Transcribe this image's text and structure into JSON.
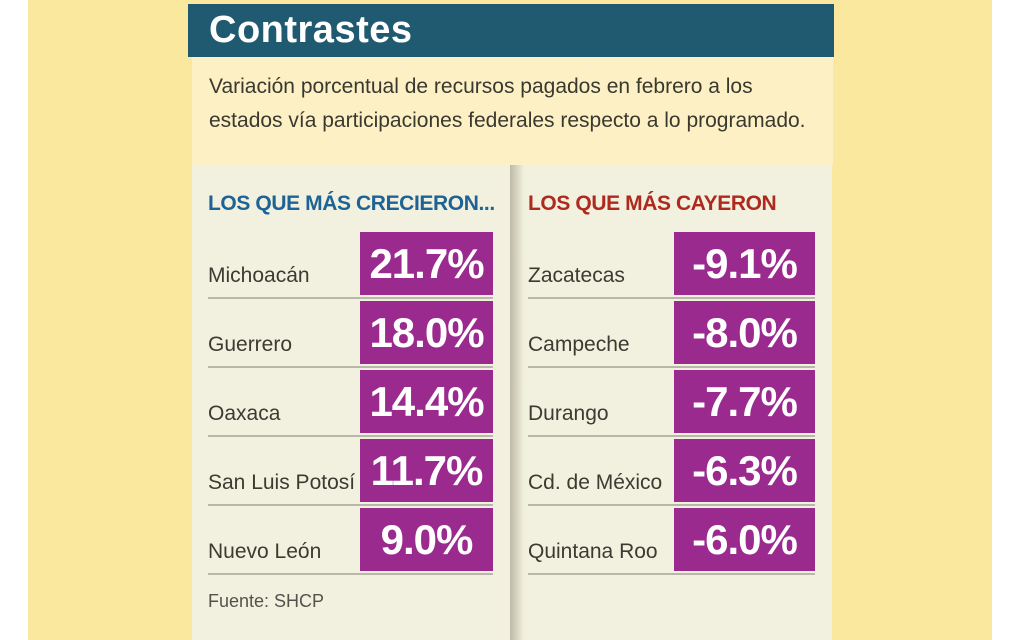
{
  "title": "Contrastes",
  "subtitle": "Variación porcentual de recursos pagados en febrero a los estados vía participaciones federales respecto a lo programado.",
  "source": "Fuente: SHCP",
  "colors": {
    "title_bar_bg": "#205a70",
    "title_text": "#ffffff",
    "page_bg": "#f9e89e",
    "intro_bg": "#fdf0c5",
    "panel_bg": "#f2f0de",
    "value_badge_bg": "#9b2a8f",
    "value_text": "#ffffff",
    "gainers_header_text": "#1d6396",
    "losers_header_text": "#ae2a1f",
    "body_text": "#3c3b32"
  },
  "columns": {
    "gainers": {
      "header": "LOS QUE MÁS CRECIERON...",
      "rows": [
        {
          "state": "Michoacán",
          "value": "21.7%"
        },
        {
          "state": "Guerrero",
          "value": "18.0%"
        },
        {
          "state": "Oaxaca",
          "value": "14.4%"
        },
        {
          "state": "San Luis Potosí",
          "value": "11.7%"
        },
        {
          "state": "Nuevo León",
          "value": "9.0%"
        }
      ]
    },
    "losers": {
      "header": "LOS QUE MÁS CAYERON",
      "rows": [
        {
          "state": "Zacatecas",
          "value": "-9.1%"
        },
        {
          "state": "Campeche",
          "value": "-8.0%"
        },
        {
          "state": "Durango",
          "value": "-7.7%"
        },
        {
          "state": "Cd. de México",
          "value": "-6.3%"
        },
        {
          "state": "Quintana Roo",
          "value": "-6.0%"
        }
      ]
    }
  },
  "chart_data": {
    "type": "table",
    "title": "Contrastes",
    "subtitle": "Variación porcentual de recursos pagados en febrero a los estados vía participaciones federales respecto a lo programado.",
    "unit": "%",
    "groups": [
      {
        "label": "LOS QUE MÁS CRECIERON...",
        "categories": [
          "Michoacán",
          "Guerrero",
          "Oaxaca",
          "San Luis Potosí",
          "Nuevo León"
        ],
        "values": [
          21.7,
          18.0,
          14.4,
          11.7,
          9.0
        ]
      },
      {
        "label": "LOS QUE MÁS CAYERON",
        "categories": [
          "Zacatecas",
          "Campeche",
          "Durango",
          "Cd. de México",
          "Quintana Roo"
        ],
        "values": [
          -9.1,
          -8.0,
          -7.7,
          -6.3,
          -6.0
        ]
      }
    ],
    "source": "Fuente: SHCP"
  }
}
